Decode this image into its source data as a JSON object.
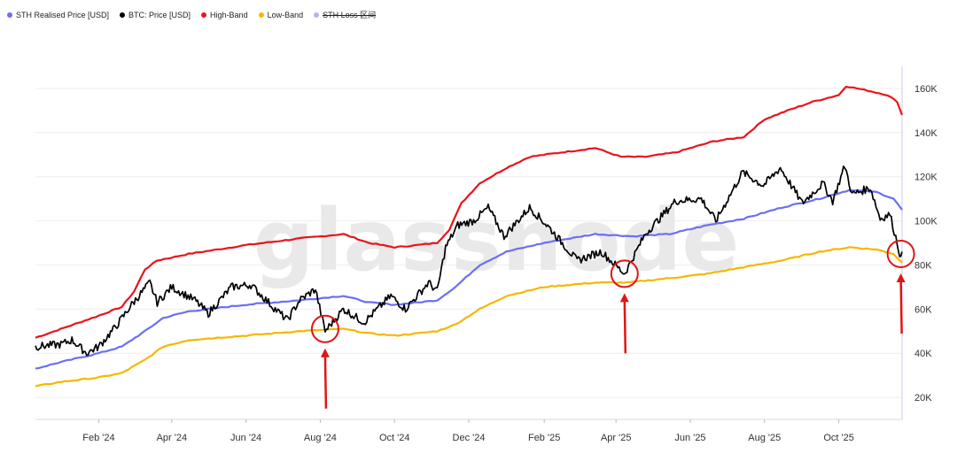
{
  "legend": [
    {
      "label": "STH Realised Price [USD]",
      "color": "#6B6FF2",
      "struck": false
    },
    {
      "label": "BTC: Price [USD]",
      "color": "#000000",
      "struck": false
    },
    {
      "label": "High-Band",
      "color": "#E8141B",
      "struck": false
    },
    {
      "label": "Low-Band",
      "color": "#F5B700",
      "struck": false
    },
    {
      "label": "STH Loss 区间",
      "color": "#B7B3F0",
      "struck": true
    }
  ],
  "watermark": "glassnode",
  "chart_data": {
    "type": "line",
    "x_ticks": [
      "Feb '24",
      "Apr '24",
      "Jun '24",
      "Aug '24",
      "Oct '24",
      "Dec '24",
      "Feb '25",
      "Apr '25",
      "Jun '25",
      "Aug '25",
      "Oct '25"
    ],
    "y_ticks": [
      "20K",
      "40K",
      "60K",
      "80K",
      "100K",
      "120K",
      "140K",
      "160K"
    ],
    "xlim": [
      "2023-12-11",
      "2025-11-22"
    ],
    "ylim": [
      10000,
      170000
    ],
    "series": [
      {
        "name": "High-Band",
        "color": "#E8141B",
        "points": [
          [
            "2023-12-11",
            47000
          ],
          [
            "2024-01-01",
            51000
          ],
          [
            "2024-02-01",
            57000
          ],
          [
            "2024-02-20",
            61000
          ],
          [
            "2024-03-01",
            68000
          ],
          [
            "2024-03-10",
            78000
          ],
          [
            "2024-03-20",
            82000
          ],
          [
            "2024-04-15",
            85000
          ],
          [
            "2024-06-01",
            89000
          ],
          [
            "2024-07-15",
            92000
          ],
          [
            "2024-08-20",
            94000
          ],
          [
            "2024-09-10",
            90000
          ],
          [
            "2024-10-01",
            88000
          ],
          [
            "2024-10-20",
            89000
          ],
          [
            "2024-11-05",
            90000
          ],
          [
            "2024-11-15",
            96000
          ],
          [
            "2024-11-25",
            108000
          ],
          [
            "2024-12-10",
            117000
          ],
          [
            "2025-01-01",
            124000
          ],
          [
            "2025-01-20",
            129000
          ],
          [
            "2025-02-15",
            131000
          ],
          [
            "2025-03-15",
            133000
          ],
          [
            "2025-04-05",
            129000
          ],
          [
            "2025-04-25",
            129000
          ],
          [
            "2025-05-20",
            131000
          ],
          [
            "2025-06-20",
            136000
          ],
          [
            "2025-07-15",
            138000
          ],
          [
            "2025-08-01",
            146000
          ],
          [
            "2025-08-20",
            150000
          ],
          [
            "2025-09-10",
            154000
          ],
          [
            "2025-10-01",
            157000
          ],
          [
            "2025-10-07",
            161000
          ],
          [
            "2025-10-25",
            159000
          ],
          [
            "2025-11-10",
            157000
          ],
          [
            "2025-11-18",
            154000
          ],
          [
            "2025-11-22",
            148000
          ]
        ]
      },
      {
        "name": "STH Realised Price [USD]",
        "color": "#6B6FF2",
        "points": [
          [
            "2023-12-11",
            33000
          ],
          [
            "2024-01-01",
            36000
          ],
          [
            "2024-02-01",
            40000
          ],
          [
            "2024-02-20",
            43000
          ],
          [
            "2024-03-10",
            50000
          ],
          [
            "2024-03-25",
            56000
          ],
          [
            "2024-04-15",
            59000
          ],
          [
            "2024-06-01",
            62000
          ],
          [
            "2024-07-15",
            64000
          ],
          [
            "2024-08-20",
            66000
          ],
          [
            "2024-09-10",
            63000
          ],
          [
            "2024-10-01",
            62000
          ],
          [
            "2024-10-20",
            63000
          ],
          [
            "2024-11-05",
            64000
          ],
          [
            "2024-11-20",
            70000
          ],
          [
            "2024-12-10",
            80000
          ],
          [
            "2025-01-01",
            86000
          ],
          [
            "2025-02-01",
            90000
          ],
          [
            "2025-03-15",
            94000
          ],
          [
            "2025-04-15",
            93000
          ],
          [
            "2025-05-15",
            94000
          ],
          [
            "2025-06-15",
            98000
          ],
          [
            "2025-07-15",
            101000
          ],
          [
            "2025-08-15",
            106000
          ],
          [
            "2025-09-15",
            110000
          ],
          [
            "2025-10-10",
            114000
          ],
          [
            "2025-11-01",
            113000
          ],
          [
            "2025-11-15",
            110000
          ],
          [
            "2025-11-22",
            105000
          ]
        ]
      },
      {
        "name": "Low-Band",
        "color": "#F5B700",
        "points": [
          [
            "2023-12-11",
            25000
          ],
          [
            "2024-01-01",
            27000
          ],
          [
            "2024-02-01",
            29000
          ],
          [
            "2024-02-20",
            31000
          ],
          [
            "2024-03-10",
            37000
          ],
          [
            "2024-03-25",
            43000
          ],
          [
            "2024-04-15",
            46000
          ],
          [
            "2024-06-01",
            48000
          ],
          [
            "2024-07-15",
            50000
          ],
          [
            "2024-08-20",
            51000
          ],
          [
            "2024-09-10",
            49000
          ],
          [
            "2024-10-01",
            48000
          ],
          [
            "2024-10-20",
            49000
          ],
          [
            "2024-11-05",
            50000
          ],
          [
            "2024-11-20",
            53000
          ],
          [
            "2024-12-10",
            60000
          ],
          [
            "2025-01-01",
            66000
          ],
          [
            "2025-02-01",
            70000
          ],
          [
            "2025-03-15",
            72000
          ],
          [
            "2025-04-10",
            72000
          ],
          [
            "2025-05-15",
            74000
          ],
          [
            "2025-06-15",
            76000
          ],
          [
            "2025-07-15",
            79000
          ],
          [
            "2025-08-15",
            82000
          ],
          [
            "2025-09-15",
            86000
          ],
          [
            "2025-10-10",
            88000
          ],
          [
            "2025-11-01",
            87000
          ],
          [
            "2025-11-15",
            85000
          ],
          [
            "2025-11-22",
            81000
          ]
        ]
      },
      {
        "name": "BTC: Price [USD]",
        "color": "#000000",
        "points": [
          [
            "2023-12-11",
            43000
          ],
          [
            "2024-01-01",
            44000
          ],
          [
            "2024-01-10",
            46000
          ],
          [
            "2024-01-22",
            40000
          ],
          [
            "2024-02-01",
            43000
          ],
          [
            "2024-02-15",
            52000
          ],
          [
            "2024-02-28",
            62000
          ],
          [
            "2024-03-14",
            72000
          ],
          [
            "2024-03-20",
            63000
          ],
          [
            "2024-04-01",
            70000
          ],
          [
            "2024-04-20",
            64000
          ],
          [
            "2024-05-01",
            58000
          ],
          [
            "2024-05-20",
            70000
          ],
          [
            "2024-06-05",
            71000
          ],
          [
            "2024-06-25",
            60000
          ],
          [
            "2024-07-05",
            55000
          ],
          [
            "2024-07-15",
            64000
          ],
          [
            "2024-07-28",
            69000
          ],
          [
            "2024-08-05",
            50000
          ],
          [
            "2024-08-20",
            60000
          ],
          [
            "2024-09-06",
            54000
          ],
          [
            "2024-09-28",
            66000
          ],
          [
            "2024-10-10",
            60000
          ],
          [
            "2024-10-29",
            72000
          ],
          [
            "2024-11-05",
            68000
          ],
          [
            "2024-11-12",
            88000
          ],
          [
            "2024-11-22",
            98000
          ],
          [
            "2024-12-05",
            100000
          ],
          [
            "2024-12-17",
            106000
          ],
          [
            "2024-12-30",
            93000
          ],
          [
            "2025-01-20",
            106000
          ],
          [
            "2025-02-05",
            97000
          ],
          [
            "2025-02-28",
            82000
          ],
          [
            "2025-03-20",
            86000
          ],
          [
            "2025-04-08",
            76000
          ],
          [
            "2025-04-25",
            94000
          ],
          [
            "2025-05-20",
            109000
          ],
          [
            "2025-06-10",
            110000
          ],
          [
            "2025-06-22",
            100000
          ],
          [
            "2025-07-14",
            122000
          ],
          [
            "2025-07-31",
            116000
          ],
          [
            "2025-08-14",
            124000
          ],
          [
            "2025-09-01",
            108000
          ],
          [
            "2025-09-18",
            117000
          ],
          [
            "2025-09-26",
            109000
          ],
          [
            "2025-10-06",
            125000
          ],
          [
            "2025-10-12",
            112000
          ],
          [
            "2025-10-27",
            115000
          ],
          [
            "2025-11-04",
            101000
          ],
          [
            "2025-11-12",
            103000
          ],
          [
            "2025-11-18",
            90000
          ],
          [
            "2025-11-21",
            83000
          ],
          [
            "2025-11-22",
            86000
          ]
        ]
      }
    ],
    "annotations": [
      {
        "type": "circle-arrow",
        "x": "2024-08-05",
        "y": 51000
      },
      {
        "type": "circle-arrow",
        "x": "2025-04-08",
        "y": 76000
      },
      {
        "type": "circle-arrow",
        "x": "2025-11-21",
        "y": 85000
      }
    ],
    "grid": true,
    "legend_position": "top-left"
  }
}
